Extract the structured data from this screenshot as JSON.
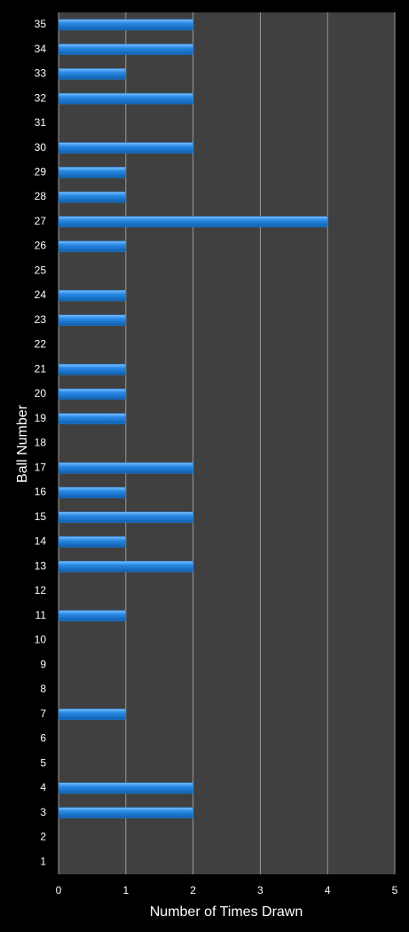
{
  "chart_data": {
    "type": "barh",
    "xlabel": "Number of Times Drawn",
    "ylabel": "Ball Number",
    "categories": [
      "1",
      "2",
      "3",
      "4",
      "5",
      "6",
      "7",
      "8",
      "9",
      "10",
      "11",
      "12",
      "13",
      "14",
      "15",
      "16",
      "17",
      "18",
      "19",
      "20",
      "21",
      "22",
      "23",
      "24",
      "25",
      "26",
      "27",
      "28",
      "29",
      "30",
      "31",
      "32",
      "33",
      "34",
      "35"
    ],
    "values": [
      0,
      0,
      2,
      2,
      0,
      0,
      1,
      0,
      0,
      0,
      1,
      0,
      2,
      1,
      2,
      1,
      2,
      0,
      1,
      1,
      1,
      0,
      1,
      1,
      0,
      1,
      4,
      1,
      1,
      2,
      0,
      2,
      1,
      2,
      2
    ],
    "color": "#1f80d8",
    "xlim": [
      0,
      5
    ],
    "xticks": [
      0,
      1,
      2,
      3,
      4,
      5
    ],
    "grid": true
  }
}
